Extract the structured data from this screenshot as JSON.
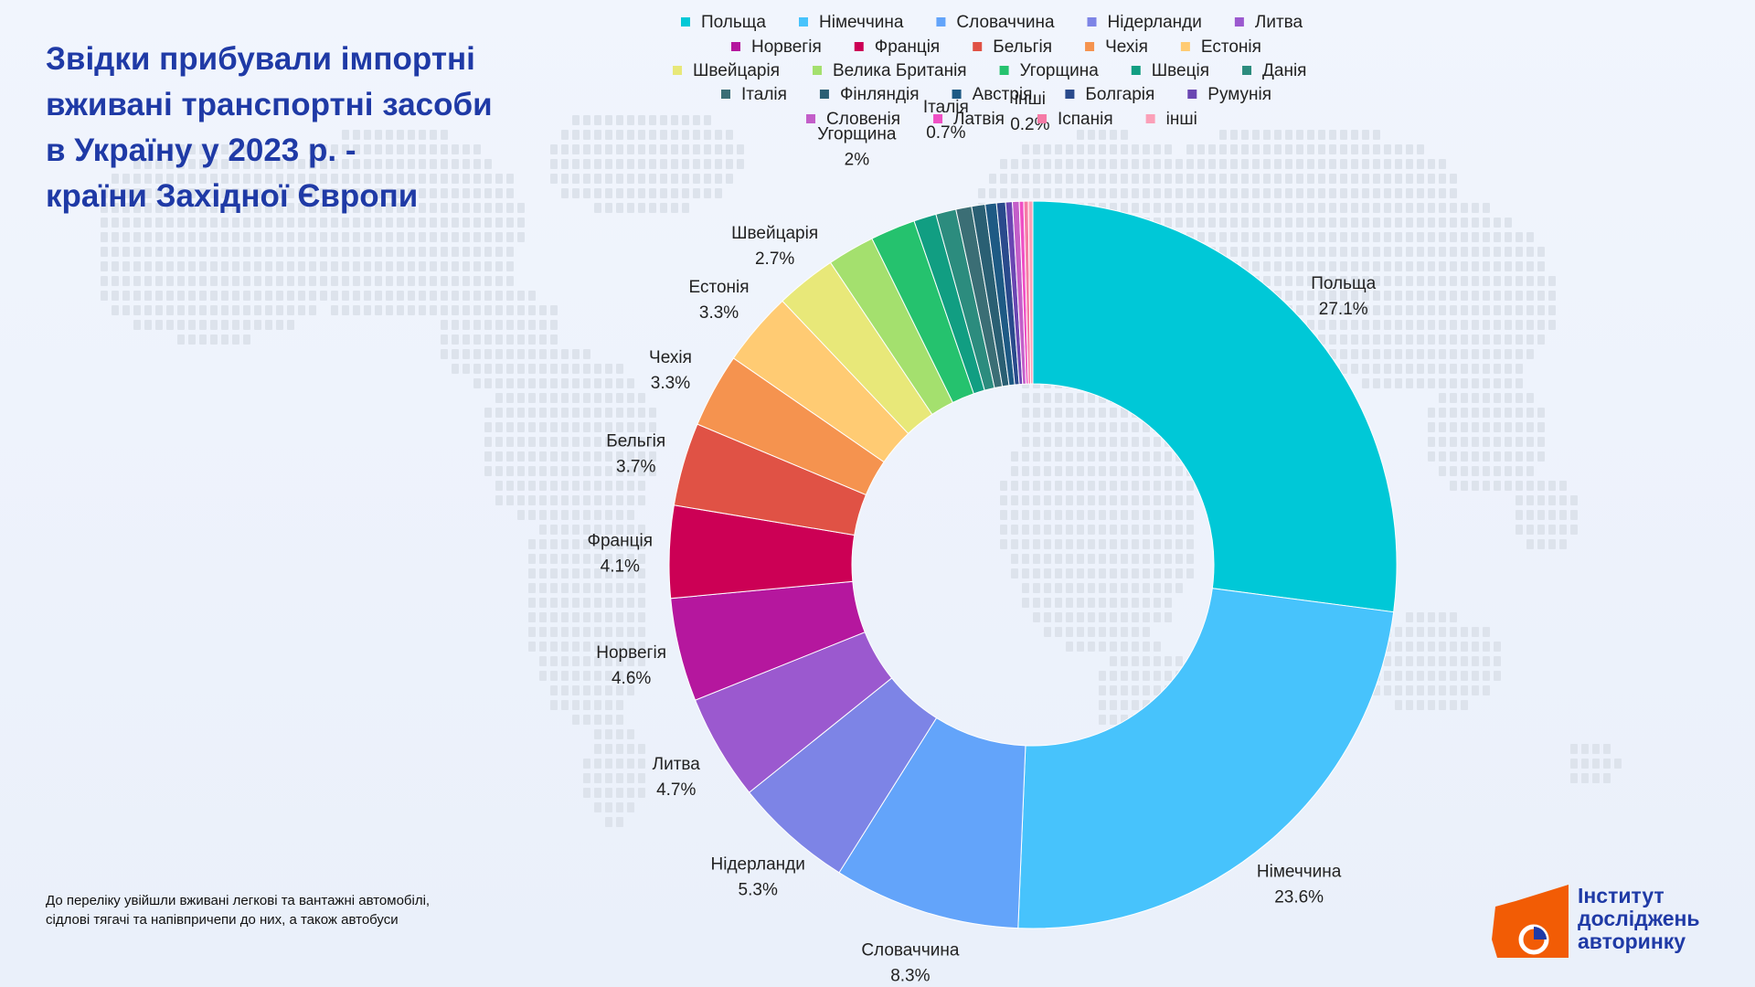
{
  "header": {
    "title_lines": [
      "Звідки прибували імпортні",
      "вживані транспортні засоби",
      "в Україну у 2023 р. -",
      "країни Західної Європи"
    ]
  },
  "footnote": {
    "lines": [
      "До переліку увійшли вживані легкові та вантажні автомобілі,",
      "сідлові тягачі та напівпричепи до них, а також автобуси"
    ]
  },
  "logo": {
    "lines": [
      "Інститут",
      "досліджень",
      "авторинку"
    ],
    "colors": {
      "text": "#1f3aa6",
      "mark": "#f25c05",
      "inner": "#1f3aa6"
    }
  },
  "chart_data": {
    "type": "donut",
    "legend_position": "top",
    "slices": [
      {
        "label": "Польща",
        "value": 27.1,
        "pct_label": "27.1%",
        "color": "#00c8d7",
        "show_label": true
      },
      {
        "label": "Німеччина",
        "value": 23.6,
        "pct_label": "23.6%",
        "color": "#47c3fc",
        "show_label": true
      },
      {
        "label": "Словаччина",
        "value": 8.3,
        "pct_label": "8.3%",
        "color": "#63a4fa",
        "show_label": true
      },
      {
        "label": "Нідерланди",
        "value": 5.3,
        "pct_label": "5.3%",
        "color": "#7d84e6",
        "show_label": true
      },
      {
        "label": "Литва",
        "value": 4.7,
        "pct_label": "4.7%",
        "color": "#9b59cf",
        "show_label": true
      },
      {
        "label": "Норвегія",
        "value": 4.6,
        "pct_label": "4.6%",
        "color": "#b5179e",
        "show_label": true
      },
      {
        "label": "Франція",
        "value": 4.1,
        "pct_label": "4.1%",
        "color": "#cc0055",
        "show_label": true
      },
      {
        "label": "Бельгія",
        "value": 3.7,
        "pct_label": "3.7%",
        "color": "#e05245",
        "show_label": true
      },
      {
        "label": "Чехія",
        "value": 3.3,
        "pct_label": "3.3%",
        "color": "#f5934f",
        "show_label": true
      },
      {
        "label": "Естонія",
        "value": 3.3,
        "pct_label": "3.3%",
        "color": "#ffcb73",
        "show_label": true
      },
      {
        "label": "Швейцарія",
        "value": 2.7,
        "pct_label": "2.7%",
        "color": "#e8e879",
        "show_label": true
      },
      {
        "label": "Велика Британія",
        "value": 2.1,
        "pct_label": "",
        "color": "#a4e06e",
        "show_label": false
      },
      {
        "label": "Угорщина",
        "value": 2.0,
        "pct_label": "2%",
        "color": "#25c26e",
        "show_label": true
      },
      {
        "label": "Швеція",
        "value": 1.0,
        "pct_label": "",
        "color": "#119e82",
        "show_label": false
      },
      {
        "label": "Данія",
        "value": 0.9,
        "pct_label": "",
        "color": "#2c8c7e",
        "show_label": false
      },
      {
        "label": "Італія",
        "value": 0.7,
        "pct_label": "0.7%",
        "color": "#3b6e75",
        "show_label": true
      },
      {
        "label": "Фінляндія",
        "value": 0.6,
        "pct_label": "",
        "color": "#2a5f73",
        "show_label": false
      },
      {
        "label": "Австрія",
        "value": 0.5,
        "pct_label": "",
        "color": "#1e5a84",
        "show_label": false
      },
      {
        "label": "Болгарія",
        "value": 0.4,
        "pct_label": "",
        "color": "#2a4a8c",
        "show_label": false
      },
      {
        "label": "Румунія",
        "value": 0.3,
        "pct_label": "",
        "color": "#6a46b2",
        "show_label": false
      },
      {
        "label": "Словенія",
        "value": 0.3,
        "pct_label": "",
        "color": "#c35ec9",
        "show_label": false
      },
      {
        "label": "Латвія",
        "value": 0.2,
        "pct_label": "",
        "color": "#ef4fc4",
        "show_label": false
      },
      {
        "label": "Іспанія",
        "value": 0.2,
        "pct_label": "",
        "color": "#f57aa6",
        "show_label": false
      },
      {
        "label": "інші",
        "value": 0.2,
        "pct_label": "0.2%",
        "color": "#fba0b8",
        "show_label": true
      }
    ]
  }
}
